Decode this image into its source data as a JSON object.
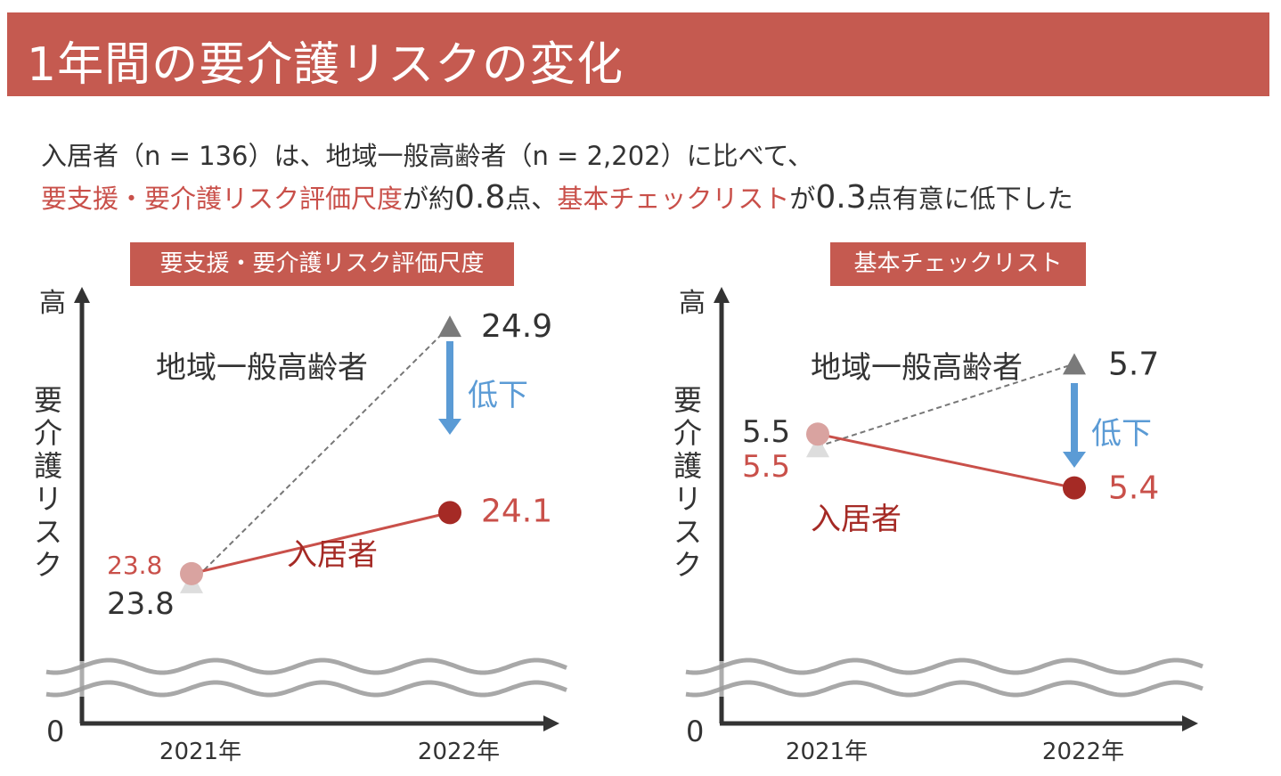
{
  "title": "1年間の要介護リスクの変化",
  "summary": {
    "line1": "入居者（n = 136）は、地域一般高齢者（n = 2,202）に比べて、",
    "line2_parts": [
      "要支援・要介護リスク評価尺度",
      "が約",
      "0.8",
      "点、",
      "基本チェックリスト",
      "が",
      "0.3",
      "点有意に低下した"
    ]
  },
  "colors": {
    "accent": "#c55a50",
    "resident": "#a52a25",
    "resident_light": "#d9a3a0",
    "general": "#7a7a7a",
    "general_light": "#dddddd",
    "decrease": "#5b9bd5"
  },
  "chart_data": [
    {
      "type": "line",
      "title": "要支援・要介護リスク評価尺度",
      "ylabel": "要介護リスク",
      "y_top_label": "高",
      "y_zero_label": "0",
      "y_axis_broken": true,
      "categories": [
        "2021年",
        "2022年"
      ],
      "series": [
        {
          "name": "地域一般高齢者",
          "values": [
            23.8,
            24.9
          ],
          "marker": "triangle",
          "style": "dashed"
        },
        {
          "name": "入居者",
          "values": [
            23.8,
            24.1
          ],
          "marker": "circle",
          "style": "solid"
        }
      ],
      "annotation": "低下"
    },
    {
      "type": "line",
      "title": "基本チェックリスト",
      "ylabel": "要介護リスク",
      "y_top_label": "高",
      "y_zero_label": "0",
      "y_axis_broken": true,
      "categories": [
        "2021年",
        "2022年"
      ],
      "series": [
        {
          "name": "地域一般高齢者",
          "values": [
            5.5,
            5.7
          ],
          "marker": "triangle",
          "style": "dashed"
        },
        {
          "name": "入居者",
          "values": [
            5.5,
            5.4
          ],
          "marker": "circle",
          "style": "solid"
        }
      ],
      "annotation": "低下"
    }
  ]
}
